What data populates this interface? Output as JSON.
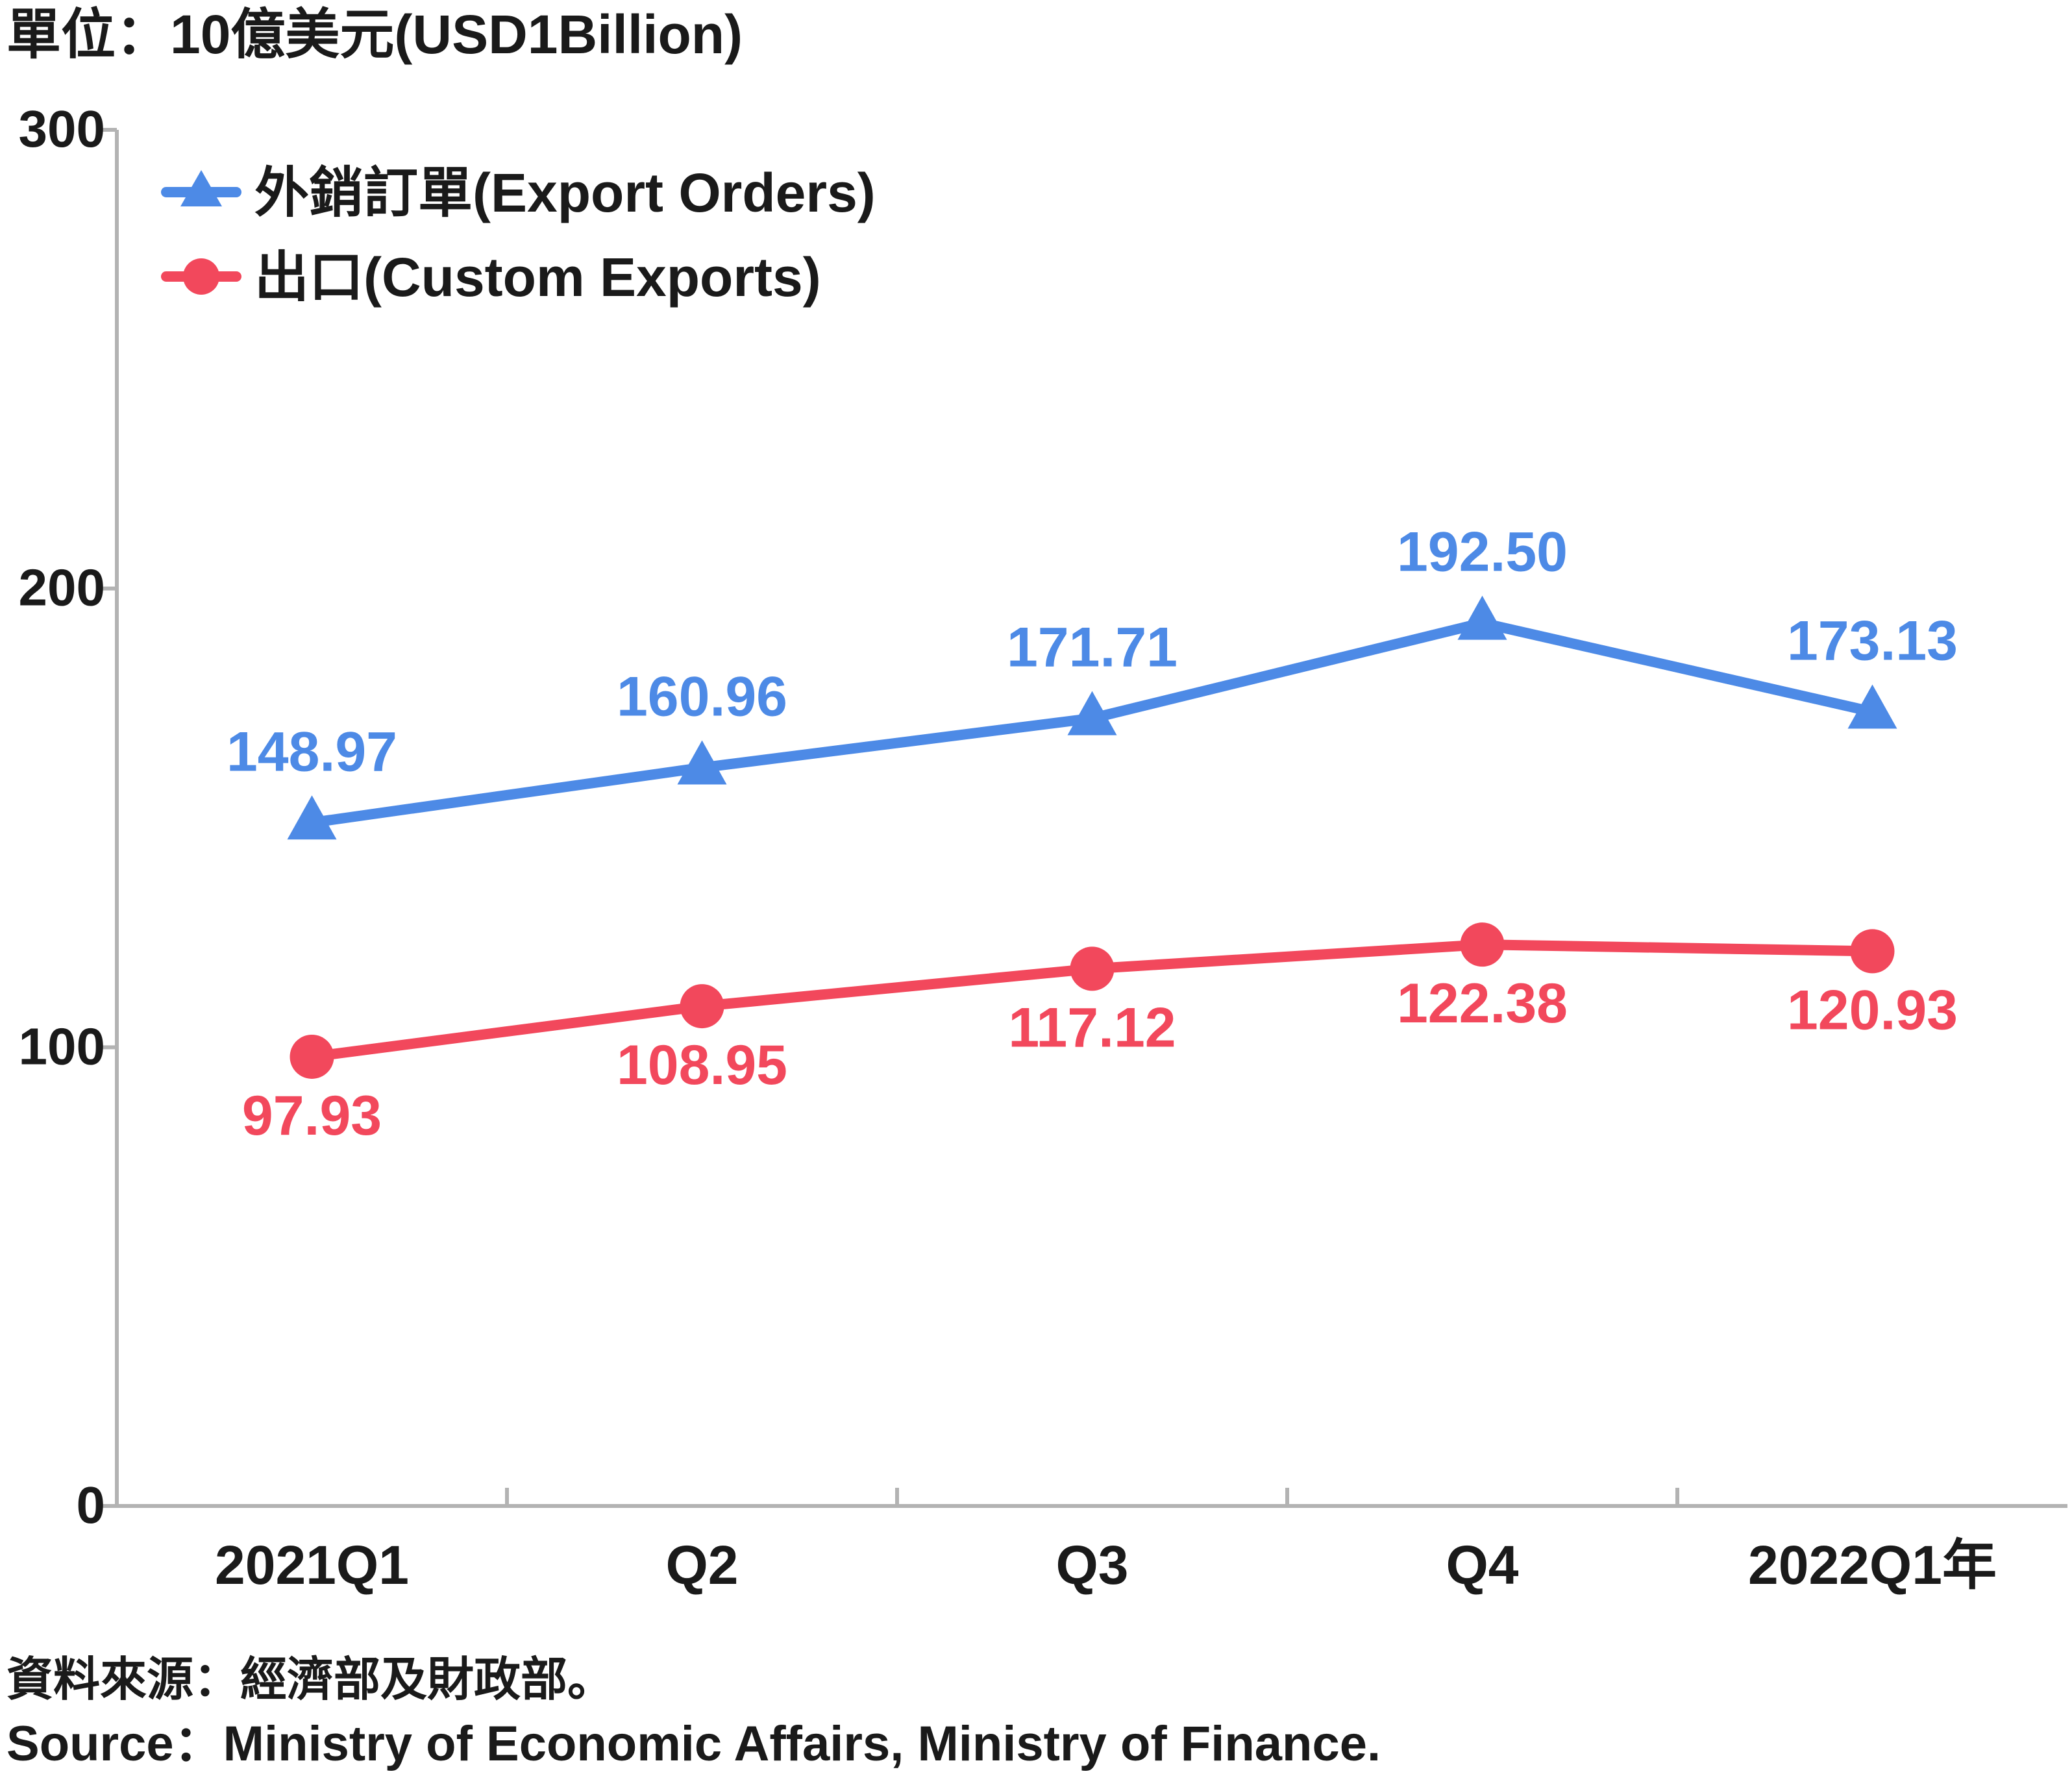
{
  "chart_data": {
    "type": "line",
    "unit_label": "單位：10億美元(USD1Billion)",
    "categories": [
      "2021Q1",
      "Q2",
      "Q3",
      "Q4",
      "2022Q1年"
    ],
    "series": [
      {
        "name": "外銷訂單(Export Orders)",
        "values": [
          148.97,
          160.96,
          171.71,
          192.5,
          173.13
        ],
        "labels": [
          "148.97",
          "160.96",
          "171.71",
          "192.50",
          "173.13"
        ],
        "color": "#4d8ae6",
        "marker": "triangle"
      },
      {
        "name": "出口(Custom Exports)",
        "values": [
          97.93,
          108.95,
          117.12,
          122.38,
          120.93
        ],
        "labels": [
          "97.93",
          "108.95",
          "117.12",
          "122.38",
          "120.93"
        ],
        "color": "#f2485c",
        "marker": "circle"
      }
    ],
    "ylim": [
      0,
      300
    ],
    "yticks": [
      "0",
      "100",
      "200",
      "300"
    ],
    "grid": false,
    "legend_position": "top-left",
    "axis_color": "#b3b3b3"
  },
  "source": {
    "zh": "資料來源：經濟部及財政部。",
    "en": "Source：Ministry of Economic Affairs, Ministry of Finance."
  }
}
